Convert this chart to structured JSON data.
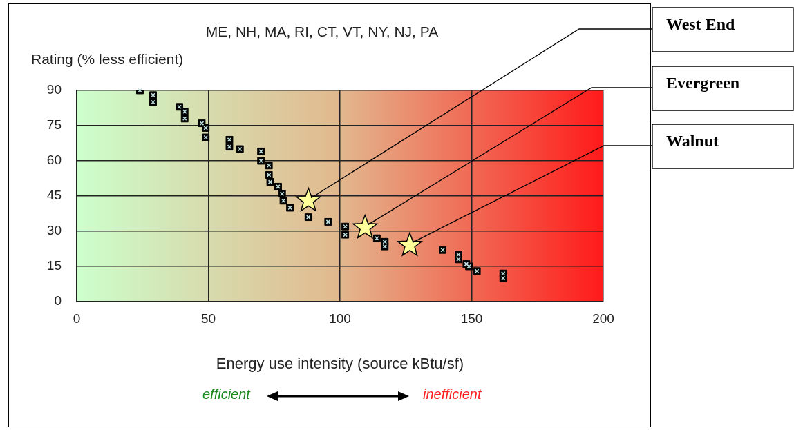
{
  "chart_data": {
    "type": "scatter",
    "title": "ME, NH, MA, RI, CT, VT, NY, NJ, PA",
    "ylabel": "Rating (% less efficient)",
    "xlabel": "Energy use intensity (source kBtu/sf)",
    "xlim": [
      0,
      200
    ],
    "xticks": [
      0,
      50,
      100,
      150,
      200
    ],
    "ylim": [
      0,
      90
    ],
    "yticks": [
      0,
      15,
      30,
      45,
      60,
      75,
      90
    ],
    "grid": true,
    "legend": false,
    "series": [
      {
        "color": "#000000",
        "marker": "square",
        "x": [
          24,
          29,
          29,
          39,
          41,
          41,
          47.5,
          49,
          49,
          58,
          58,
          62,
          70,
          70,
          73,
          73,
          73.5,
          76.5,
          78,
          78.5,
          81,
          88,
          95.5,
          102,
          102,
          114,
          117,
          117,
          139,
          145,
          145,
          148,
          149,
          152,
          162,
          162
        ],
        "values": [
          90,
          88,
          85,
          83,
          81,
          78,
          76,
          74,
          70,
          69,
          66,
          65,
          64,
          60,
          58,
          54,
          51,
          49,
          46,
          43,
          40,
          36,
          34,
          32,
          28.5,
          27,
          25.5,
          23.5,
          22,
          20,
          18,
          16,
          15,
          13,
          12,
          10
        ]
      },
      {
        "color": "#ffff99",
        "marker": "star",
        "x": [
          88,
          109.5,
          126.5
        ],
        "values": [
          43,
          31.5,
          24
        ]
      }
    ],
    "annotations": [
      {
        "text": "West End",
        "x": 88,
        "y": 43
      },
      {
        "text": "Evergreen",
        "x": 109.5,
        "y": 31.5
      },
      {
        "text": "Walnut",
        "x": 126.5,
        "y": 24
      },
      "efficient",
      "inefficient"
    ]
  }
}
